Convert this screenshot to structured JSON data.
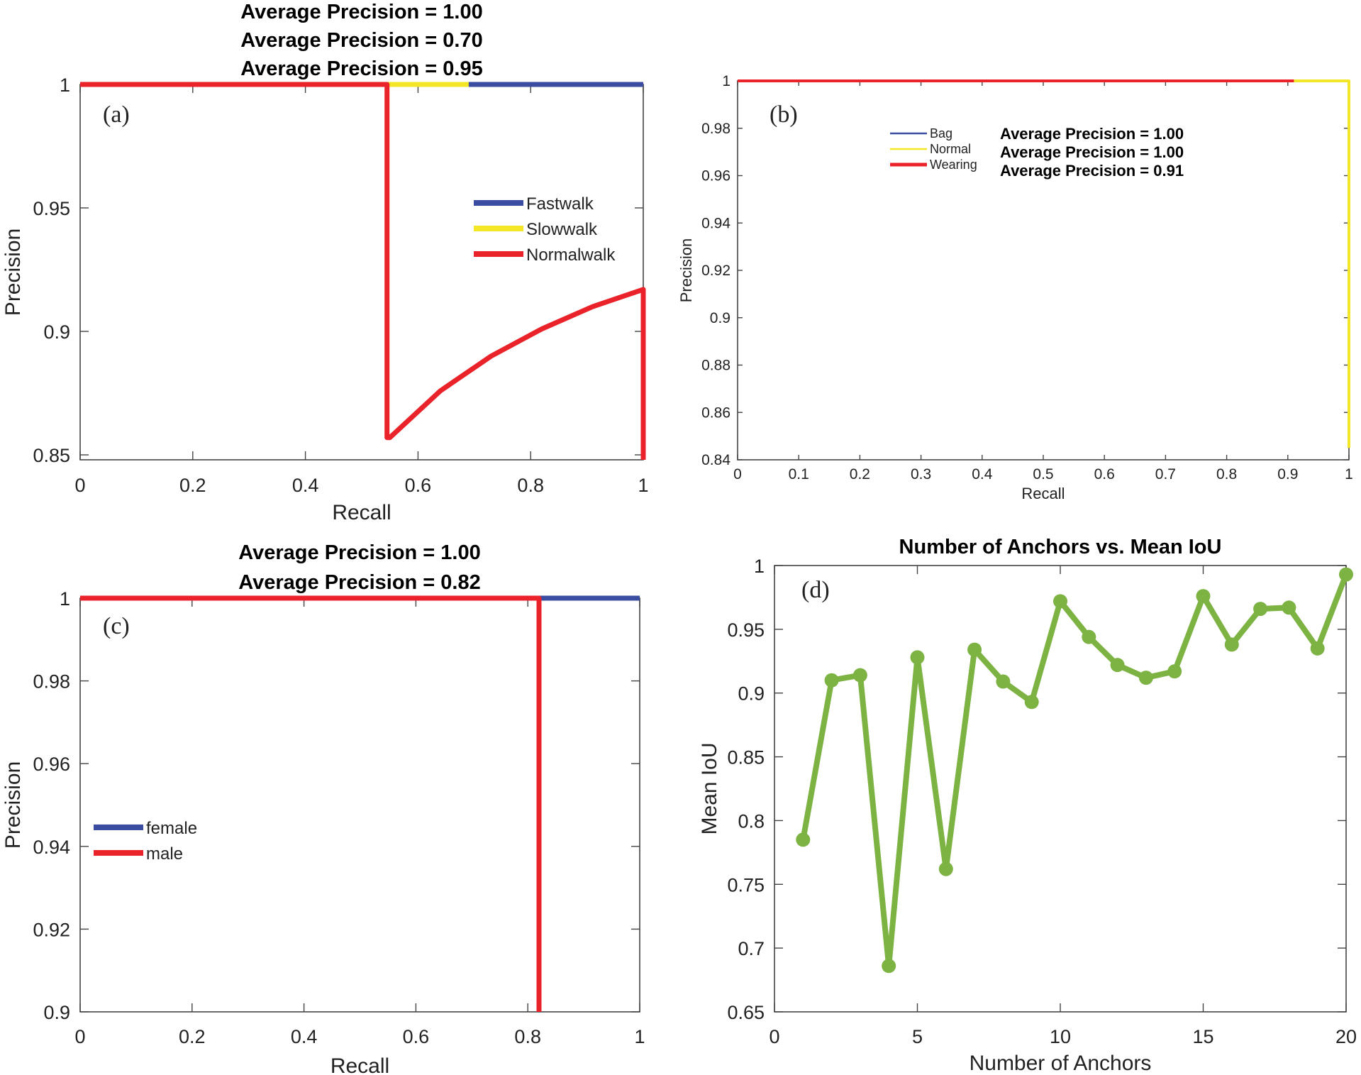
{
  "colors": {
    "blue": "#3a4da0",
    "yellow": "#f2e626",
    "red": "#ea2229",
    "green": "#7cb342",
    "axis": "#444444"
  },
  "chart_data": [
    {
      "id": "a",
      "type": "line",
      "panel_label": "(a)",
      "titles": [
        "Average Precision = 1.00",
        "Average Precision = 0.70",
        "Average Precision = 0.95"
      ],
      "xlabel": "Recall",
      "ylabel": "Precision",
      "xlim": [
        0,
        1
      ],
      "ylim": [
        0.848,
        1
      ],
      "xticks": [
        0,
        0.2,
        0.4,
        0.6,
        0.8,
        1
      ],
      "xtick_labels": [
        "0",
        "0.2",
        "0.4",
        "0.6",
        "0.8",
        "1"
      ],
      "yticks": [
        0.85,
        0.9,
        0.95,
        1
      ],
      "ytick_labels": [
        "0.85",
        "0.9",
        "0.95",
        "1"
      ],
      "legend_position": "right",
      "series": [
        {
          "name": "Fastwalk",
          "color": "blue",
          "x": [
            0,
            1
          ],
          "y": [
            1,
            1
          ]
        },
        {
          "name": "Slowwalk",
          "color": "yellow",
          "x": [
            0,
            0.69
          ],
          "y": [
            1,
            1
          ]
        },
        {
          "name": "Normalwalk",
          "color": "red",
          "x": [
            0,
            0.545,
            0.545,
            0.55,
            0.64,
            0.73,
            0.82,
            0.91,
            1.0,
            1.0
          ],
          "y": [
            1,
            1,
            0.857,
            0.857,
            0.876,
            0.89,
            0.901,
            0.91,
            0.917,
            0.848
          ]
        }
      ]
    },
    {
      "id": "b",
      "type": "line",
      "panel_label": "(b)",
      "titles": [],
      "legend_ap": [
        "Average Precision = 1.00",
        "Average Precision = 1.00",
        "Average Precision = 0.91"
      ],
      "xlabel": "Recall",
      "ylabel": "Precision",
      "xlim": [
        0,
        1
      ],
      "ylim": [
        0.84,
        1
      ],
      "xticks": [
        0,
        0.1,
        0.2,
        0.3,
        0.4,
        0.5,
        0.6,
        0.7,
        0.8,
        0.9,
        1
      ],
      "xtick_labels": [
        "0",
        "0.1",
        "0.2",
        "0.3",
        "0.4",
        "0.5",
        "0.6",
        "0.7",
        "0.8",
        "0.9",
        "1"
      ],
      "yticks": [
        0.84,
        0.86,
        0.88,
        0.9,
        0.92,
        0.94,
        0.96,
        0.98,
        1
      ],
      "ytick_labels": [
        "0.84",
        "0.86",
        "0.88",
        "0.9",
        "0.92",
        "0.94",
        "0.96",
        "0.98",
        "1"
      ],
      "legend_position": "top-left",
      "series": [
        {
          "name": "Bag",
          "color": "blue",
          "x": [
            0,
            1
          ],
          "y": [
            1,
            1
          ]
        },
        {
          "name": "Normal",
          "color": "yellow",
          "x": [
            0,
            1,
            1
          ],
          "y": [
            1,
            1,
            0.845
          ]
        },
        {
          "name": "Wearing",
          "color": "red",
          "x": [
            0,
            0.91
          ],
          "y": [
            1,
            1
          ]
        }
      ]
    },
    {
      "id": "c",
      "type": "line",
      "panel_label": "(c)",
      "titles": [
        "Average Precision = 1.00",
        "Average Precision = 0.82"
      ],
      "xlabel": "Recall",
      "ylabel": "Precision",
      "xlim": [
        0,
        1
      ],
      "ylim": [
        0.9,
        1
      ],
      "xticks": [
        0,
        0.2,
        0.4,
        0.6,
        0.8,
        1
      ],
      "xtick_labels": [
        "0",
        "0.2",
        "0.4",
        "0.6",
        "0.8",
        "1"
      ],
      "yticks": [
        0.9,
        0.92,
        0.94,
        0.96,
        0.98,
        1
      ],
      "ytick_labels": [
        "0.9",
        "0.92",
        "0.94",
        "0.96",
        "0.98",
        "1"
      ],
      "legend_position": "left",
      "series": [
        {
          "name": "female",
          "color": "blue",
          "x": [
            0,
            1
          ],
          "y": [
            1,
            1
          ]
        },
        {
          "name": "male",
          "color": "red",
          "x": [
            0,
            0.82,
            0.82
          ],
          "y": [
            1,
            1,
            0.9
          ]
        }
      ]
    },
    {
      "id": "d",
      "type": "line",
      "panel_label": "(d)",
      "titles": [
        "Number of Anchors vs. Mean IoU"
      ],
      "xlabel": "Number of Anchors",
      "ylabel": "Mean IoU",
      "xlim": [
        0,
        20
      ],
      "ylim": [
        0.65,
        1
      ],
      "xticks": [
        0,
        5,
        10,
        15,
        20
      ],
      "xtick_labels": [
        "0",
        "5",
        "10",
        "15",
        "20"
      ],
      "yticks": [
        0.65,
        0.7,
        0.75,
        0.8,
        0.85,
        0.9,
        0.95,
        1
      ],
      "ytick_labels": [
        "0.65",
        "0.7",
        "0.75",
        "0.8",
        "0.85",
        "0.9",
        "0.95",
        "1"
      ],
      "legend_position": "none",
      "series": [
        {
          "name": "Mean IoU",
          "color": "green",
          "markers": true,
          "x": [
            1,
            2,
            3,
            4,
            5,
            6,
            7,
            8,
            9,
            10,
            11,
            12,
            13,
            14,
            15,
            16,
            17,
            18,
            19,
            20
          ],
          "y": [
            0.785,
            0.91,
            0.914,
            0.686,
            0.928,
            0.762,
            0.934,
            0.909,
            0.893,
            0.972,
            0.944,
            0.922,
            0.912,
            0.917,
            0.976,
            0.938,
            0.966,
            0.967,
            0.935,
            0.993
          ]
        }
      ]
    }
  ]
}
